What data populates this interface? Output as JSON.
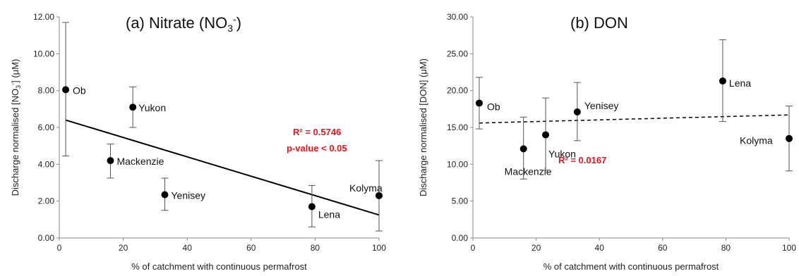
{
  "chart_data": [
    {
      "type": "scatter",
      "title": "(a) Nitrate (NO",
      "title_sub": "3",
      "title_sup": "-",
      "title_end": ")",
      "xlabel": "% of catchment with continuous permafrost",
      "ylabel": "Discharge normalised [NO",
      "ylabel_sub": "3",
      "ylabel_sup": "-",
      "ylabel_end": "] (μM)",
      "xlim": [
        0,
        100
      ],
      "ylim": [
        0,
        12
      ],
      "xticks": [
        0,
        20,
        40,
        60,
        80,
        100
      ],
      "yticks": [
        0,
        2,
        4,
        6,
        8,
        10,
        12
      ],
      "ytick_labels": [
        "0.00",
        "2.00",
        "4.00",
        "6.00",
        "8.00",
        "10.00",
        "12.00"
      ],
      "points": [
        {
          "label": "Ob",
          "x": 2,
          "y": 8.05,
          "err_low": 4.45,
          "err_high": 11.7
        },
        {
          "label": "Yukon",
          "x": 23,
          "y": 7.1,
          "err_low": 6.0,
          "err_high": 8.2
        },
        {
          "label": "Mackenzie",
          "x": 16,
          "y": 4.2,
          "err_low": 3.25,
          "err_high": 5.1
        },
        {
          "label": "Yenisey",
          "x": 33,
          "y": 2.35,
          "err_low": 1.5,
          "err_high": 3.25
        },
        {
          "label": "Lena",
          "x": 79,
          "y": 1.7,
          "err_low": 0.6,
          "err_high": 2.85
        },
        {
          "label": "Kolyma",
          "x": 100,
          "y": 2.3,
          "err_low": 0.38,
          "err_high": 4.2
        }
      ],
      "trendline": {
        "style": "solid",
        "x": [
          2,
          100
        ],
        "y": [
          6.4,
          1.25
        ]
      },
      "stats": {
        "r2": "R² = 0.5746",
        "p": "p-value < 0.05"
      }
    },
    {
      "type": "scatter",
      "title": "(b)  DON",
      "xlabel": "% of catchment with continuous permafrost",
      "ylabel": "Discharge normalised [DON] (μM)",
      "xlim": [
        0,
        100
      ],
      "ylim": [
        0,
        30
      ],
      "xticks": [
        0,
        20,
        40,
        60,
        80,
        100
      ],
      "yticks": [
        0,
        5,
        10,
        15,
        20,
        25,
        30
      ],
      "ytick_labels": [
        "0.00",
        "5.00",
        "10.00",
        "15.00",
        "20.00",
        "25.00",
        "30.00"
      ],
      "points": [
        {
          "label": "Ob",
          "x": 2,
          "y": 18.3,
          "err_low": 14.8,
          "err_high": 21.8
        },
        {
          "label": "Mackenzie",
          "x": 16,
          "y": 12.1,
          "err_low": 8.0,
          "err_high": 16.4
        },
        {
          "label": "Yukon",
          "x": 23,
          "y": 14.0,
          "err_low": 9.2,
          "err_high": 19.0
        },
        {
          "label": "Yenisey",
          "x": 33,
          "y": 17.1,
          "err_low": 13.2,
          "err_high": 21.1
        },
        {
          "label": "Lena",
          "x": 79,
          "y": 21.3,
          "err_low": 15.8,
          "err_high": 26.9
        },
        {
          "label": "Kolyma",
          "x": 100,
          "y": 13.5,
          "err_low": 9.1,
          "err_high": 17.9
        }
      ],
      "trendline": {
        "style": "dashed",
        "x": [
          2,
          100
        ],
        "y": [
          15.6,
          16.7
        ]
      },
      "stats": {
        "r2": "R² = 0.0167"
      }
    }
  ],
  "colors": {
    "points": "#000000",
    "trend": "#000000",
    "stats": "#e8141c",
    "axes": "#888888"
  }
}
